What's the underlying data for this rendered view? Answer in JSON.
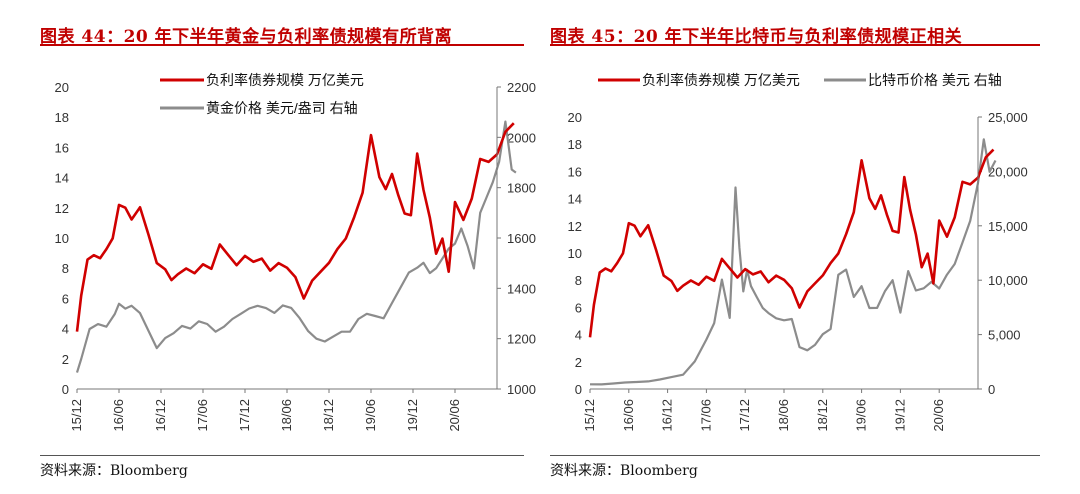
{
  "colors": {
    "title": "#c00000",
    "red_series": "#d00000",
    "gray_series": "#8c8c8c"
  },
  "left": {
    "title": "图表 44：20 年下半年黄金与负利率债规模有所背离",
    "source": "资料来源：Bloomberg",
    "chart_data": {
      "type": "line",
      "x_tick_labels": [
        "15/12",
        "16/06",
        "16/12",
        "17/06",
        "17/12",
        "18/06",
        "18/12",
        "19/06",
        "19/12",
        "20/06"
      ],
      "y_left": {
        "min": 0,
        "max": 20,
        "ticks": [
          "0",
          "2",
          "4",
          "6",
          "8",
          "10",
          "12",
          "14",
          "16",
          "18",
          "20"
        ]
      },
      "y_right": {
        "min": 1000,
        "max": 2200,
        "ticks": [
          "1000",
          "1200",
          "1400",
          "1600",
          "1800",
          "2000",
          "2200"
        ]
      },
      "series": [
        {
          "name": "负利率债券规模 万亿美元",
          "axis": "left",
          "color": "#d00000",
          "t": [
            0,
            0.1,
            0.25,
            0.4,
            0.55,
            0.7,
            0.85,
            1.0,
            1.15,
            1.3,
            1.5,
            1.7,
            1.9,
            2.1,
            2.25,
            2.4,
            2.6,
            2.8,
            3.0,
            3.2,
            3.4,
            3.6,
            3.8,
            4.0,
            4.2,
            4.4,
            4.6,
            4.8,
            5.0,
            5.2,
            5.4,
            5.6,
            5.8,
            6.0,
            6.2,
            6.4,
            6.6,
            6.8,
            7.0,
            7.2,
            7.35,
            7.5,
            7.65,
            7.8,
            7.95,
            8.1,
            8.25,
            8.4,
            8.55,
            8.7,
            8.85,
            9.0,
            9.2,
            9.4,
            9.6,
            9.8,
            10.0,
            10.2,
            10.4
          ],
          "values": [
            3.8,
            6.2,
            8.6,
            8.9,
            8.7,
            9.3,
            10.0,
            12.2,
            12.0,
            11.2,
            12.0,
            10.2,
            8.3,
            7.9,
            7.2,
            7.6,
            8.0,
            7.7,
            8.3,
            8.0,
            9.6,
            8.9,
            8.2,
            8.8,
            8.4,
            8.6,
            7.8,
            8.3,
            8.0,
            7.4,
            6.0,
            7.2,
            7.8,
            8.4,
            9.3,
            10.0,
            11.4,
            13.0,
            16.8,
            14.0,
            13.2,
            14.2,
            12.8,
            11.6,
            11.5,
            15.6,
            13.2,
            11.4,
            9.0,
            10.0,
            7.8,
            12.4,
            11.2,
            12.6,
            15.2,
            15.0,
            15.5,
            17.0,
            17.6
          ]
        },
        {
          "name": "黄金价格 美元/盎司 右轴",
          "axis": "right",
          "color": "#8c8c8c",
          "t": [
            0,
            0.1,
            0.3,
            0.5,
            0.7,
            0.9,
            1.0,
            1.15,
            1.3,
            1.5,
            1.7,
            1.9,
            2.1,
            2.3,
            2.5,
            2.7,
            2.9,
            3.1,
            3.3,
            3.5,
            3.7,
            3.9,
            4.1,
            4.3,
            4.5,
            4.7,
            4.9,
            5.1,
            5.3,
            5.5,
            5.7,
            5.9,
            6.1,
            6.3,
            6.5,
            6.7,
            6.9,
            7.1,
            7.3,
            7.5,
            7.7,
            7.9,
            8.1,
            8.25,
            8.4,
            8.55,
            8.7,
            8.85,
            9.0,
            9.15,
            9.3,
            9.45,
            9.6,
            9.75,
            9.9,
            10.05,
            10.2,
            10.35,
            10.45
          ],
          "values": [
            1065,
            1120,
            1240,
            1260,
            1250,
            1300,
            1340,
            1320,
            1330,
            1300,
            1230,
            1160,
            1200,
            1220,
            1250,
            1240,
            1270,
            1260,
            1230,
            1250,
            1280,
            1300,
            1320,
            1330,
            1320,
            1300,
            1330,
            1320,
            1280,
            1230,
            1200,
            1190,
            1210,
            1230,
            1230,
            1280,
            1300,
            1290,
            1280,
            1340,
            1400,
            1460,
            1480,
            1500,
            1460,
            1480,
            1520,
            1560,
            1580,
            1640,
            1570,
            1480,
            1700,
            1760,
            1820,
            1900,
            2060,
            1870,
            1860
          ]
        }
      ]
    }
  },
  "right": {
    "title": "图表 45：20 年下半年比特币与负利率债规模正相关",
    "source": "资料来源：Bloomberg",
    "chart_data": {
      "type": "line",
      "x_tick_labels": [
        "15/12",
        "16/06",
        "16/12",
        "17/06",
        "17/12",
        "18/06",
        "18/12",
        "19/06",
        "19/12",
        "20/06"
      ],
      "y_left": {
        "min": 0,
        "max": 20,
        "ticks": [
          "0",
          "2",
          "4",
          "6",
          "8",
          "10",
          "12",
          "14",
          "16",
          "18",
          "20"
        ]
      },
      "y_right": {
        "min": 0,
        "max": 25000,
        "ticks": [
          "0",
          "5,000",
          "10,000",
          "15,000",
          "20,000",
          "25,000"
        ]
      },
      "series": [
        {
          "name": "负利率债券规模 万亿美元",
          "axis": "left",
          "color": "#d00000",
          "t": [
            0,
            0.1,
            0.25,
            0.4,
            0.55,
            0.7,
            0.85,
            1.0,
            1.15,
            1.3,
            1.5,
            1.7,
            1.9,
            2.1,
            2.25,
            2.4,
            2.6,
            2.8,
            3.0,
            3.2,
            3.4,
            3.6,
            3.8,
            4.0,
            4.2,
            4.4,
            4.6,
            4.8,
            5.0,
            5.2,
            5.4,
            5.6,
            5.8,
            6.0,
            6.2,
            6.4,
            6.6,
            6.8,
            7.0,
            7.2,
            7.35,
            7.5,
            7.65,
            7.8,
            7.95,
            8.1,
            8.25,
            8.4,
            8.55,
            8.7,
            8.85,
            9.0,
            9.2,
            9.4,
            9.6,
            9.8,
            10.0,
            10.2,
            10.4
          ],
          "values": [
            3.8,
            6.2,
            8.6,
            8.9,
            8.7,
            9.3,
            10.0,
            12.2,
            12.0,
            11.2,
            12.0,
            10.2,
            8.3,
            7.9,
            7.2,
            7.6,
            8.0,
            7.7,
            8.3,
            8.0,
            9.6,
            8.9,
            8.2,
            8.8,
            8.4,
            8.6,
            7.8,
            8.3,
            8.0,
            7.4,
            6.0,
            7.2,
            7.8,
            8.4,
            9.3,
            10.0,
            11.4,
            13.0,
            16.8,
            14.0,
            13.2,
            14.2,
            12.8,
            11.6,
            11.5,
            15.6,
            13.2,
            11.4,
            9.0,
            10.0,
            7.8,
            12.4,
            11.2,
            12.6,
            15.2,
            15.0,
            15.5,
            17.0,
            17.6
          ]
        },
        {
          "name": "比特币价格 美元 右轴",
          "axis": "right",
          "color": "#8c8c8c",
          "t": [
            0,
            0.3,
            0.6,
            0.9,
            1.2,
            1.5,
            1.8,
            2.1,
            2.4,
            2.7,
            3.0,
            3.2,
            3.4,
            3.6,
            3.75,
            3.85,
            3.95,
            4.05,
            4.15,
            4.3,
            4.45,
            4.6,
            4.8,
            5.0,
            5.2,
            5.4,
            5.6,
            5.8,
            6.0,
            6.2,
            6.4,
            6.6,
            6.8,
            7.0,
            7.2,
            7.4,
            7.6,
            7.8,
            8.0,
            8.2,
            8.4,
            8.6,
            8.8,
            9.0,
            9.2,
            9.4,
            9.6,
            9.8,
            10.0,
            10.15,
            10.3,
            10.45
          ],
          "values": [
            430,
            450,
            550,
            650,
            700,
            750,
            900,
            1100,
            1300,
            2500,
            4500,
            6000,
            10000,
            6500,
            18500,
            13000,
            9000,
            11000,
            9500,
            8500,
            7500,
            7000,
            6500,
            6300,
            6400,
            3800,
            3500,
            4000,
            5000,
            5500,
            10500,
            11000,
            8500,
            9500,
            7500,
            7500,
            9000,
            10000,
            7000,
            10800,
            9000,
            9200,
            9800,
            9200,
            10500,
            11500,
            13500,
            15500,
            19000,
            23000,
            20000,
            21000
          ]
        }
      ]
    }
  }
}
